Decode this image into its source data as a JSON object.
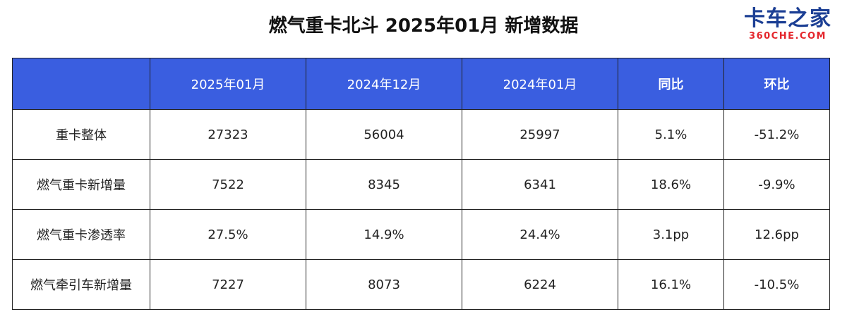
{
  "header": {
    "title": "燃气重卡北斗 2025年01月 新增数据",
    "logo": "卡车之家",
    "logo_sub": "360CHE.COM"
  },
  "table": {
    "columns": [
      "2025年01月",
      "2024年12月",
      "2024年01月",
      "同比",
      "环比"
    ],
    "rows": [
      [
        "重卡整体",
        "27323",
        "56004",
        "25997",
        "5.1%",
        "-51.2%"
      ],
      [
        "燃气重卡新增量",
        "7522",
        "8345",
        "6341",
        "18.6%",
        "-9.9%"
      ],
      [
        "燃气重卡渗透率",
        "27.5%",
        "14.9%",
        "24.4%",
        "3.1pp",
        "12.6pp"
      ],
      [
        "燃气牵引车新增量",
        "7227",
        "8073",
        "6224",
        "16.1%",
        "-10.5%"
      ]
    ]
  }
}
